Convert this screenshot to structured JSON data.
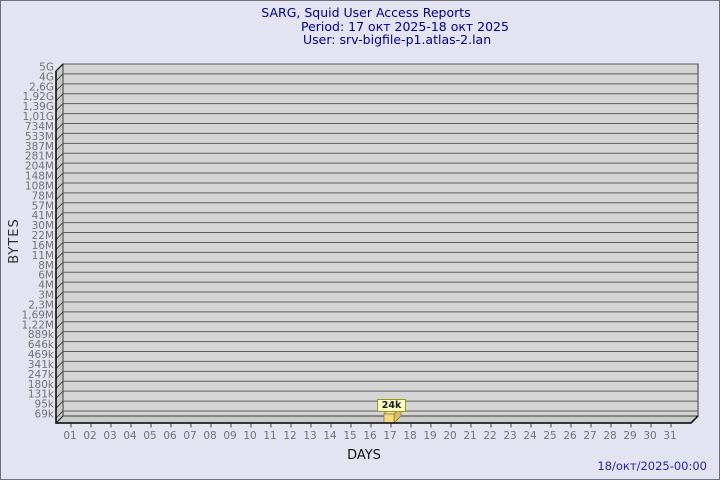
{
  "chart_data": {
    "type": "bar",
    "style": "3d-bar-log-scale",
    "title": "SARG, Squid User Access Reports",
    "period": "Period: 17 окт 2025-18 окт 2025",
    "user": "User: srv-bigfile-p1.atlas-2.lan",
    "xlabel": "DAYS",
    "ylabel": "BYTES",
    "footer_timestamp": "18/окт/2025-00:00",
    "y_axis": {
      "scale": "logarithmic",
      "range_low_label": "69k",
      "range_high_label": "5G",
      "tick_labels_top_to_bottom": [
        "5G",
        "4G",
        "2,6G",
        "1,92G",
        "1,39G",
        "1,01G",
        "734M",
        "533M",
        "387M",
        "281M",
        "204M",
        "148M",
        "108M",
        "78M",
        "57M",
        "41M",
        "30M",
        "22M",
        "16M",
        "11M",
        "8M",
        "6M",
        "4M",
        "3M",
        "2,3M",
        "1,69M",
        "1,22M",
        "889k",
        "646k",
        "469k",
        "341k",
        "247k",
        "180k",
        "131k",
        "95k",
        "69k"
      ]
    },
    "x_axis": {
      "tick_labels": [
        "01",
        "02",
        "03",
        "04",
        "05",
        "06",
        "07",
        "08",
        "09",
        "10",
        "11",
        "12",
        "13",
        "14",
        "15",
        "16",
        "17",
        "18",
        "19",
        "20",
        "21",
        "22",
        "23",
        "24",
        "25",
        "26",
        "27",
        "28",
        "29",
        "30",
        "31"
      ]
    },
    "bars": [
      {
        "day": 17,
        "value_label": "24k",
        "value_bytes_approx": 24000
      }
    ],
    "legend": null,
    "grid": "horizontal-lines-on",
    "colors": {
      "background": "#e3e3f2",
      "plot_bg": "#d5d5d5",
      "wall": "#c9c9c9",
      "grid_line": "#5e5e5e",
      "axis_line": "#000000",
      "edge_line": "#3a3a3a",
      "title_text": "#00008c",
      "tick_text": "#737373",
      "bar_front": "#f2da7e",
      "bar_top": "#f6e49a",
      "bar_side": "#d9bd5e",
      "bar_edge": "#7a6a24",
      "annotation_bg": "#ffffc4",
      "annotation_border": "#99991a",
      "footer_text": "#2626b0"
    }
  }
}
